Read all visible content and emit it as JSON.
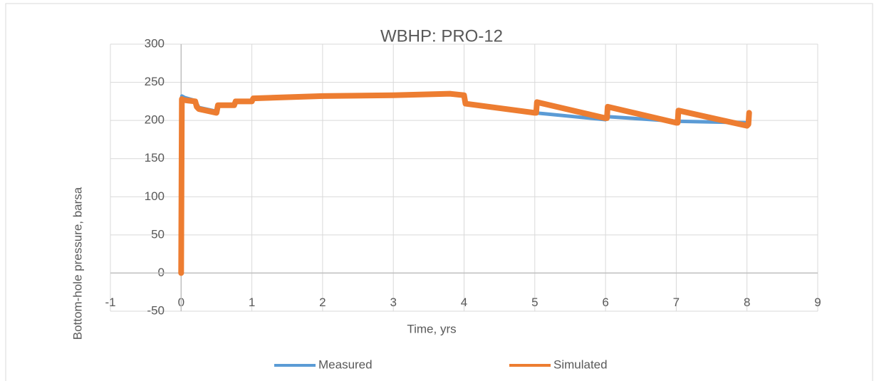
{
  "chart_data": {
    "type": "line",
    "title": "WBHP: PRO-12",
    "x_label": "Time, yrs",
    "y_label": "Bottom-hole pressure, barsa",
    "xlim": [
      -1,
      9
    ],
    "xticks": [
      -1,
      0,
      1,
      2,
      3,
      4,
      5,
      6,
      7,
      8,
      9
    ],
    "ylim": [
      -50,
      300
    ],
    "yticks": [
      -50,
      0,
      50,
      100,
      150,
      200,
      250,
      300
    ],
    "grid": true,
    "legend": "bottom",
    "series": [
      {
        "name": "Measured",
        "color": "#5b9bd5",
        "x": [
          0,
          0.01,
          0.05,
          0.2,
          0.25,
          0.5,
          0.52,
          0.75,
          0.77,
          1,
          1.02,
          2,
          3,
          3.8,
          4,
          4.02,
          5,
          6,
          6.02,
          7,
          8
        ],
        "values": [
          0,
          232,
          230,
          226,
          217,
          212,
          220,
          220,
          225,
          225,
          229,
          232,
          233,
          235,
          233,
          222,
          210,
          201,
          205,
          199,
          197
        ]
      },
      {
        "name": "Simulated",
        "color": "#ed7d31",
        "x": [
          0,
          0.01,
          0.02,
          0.1,
          0.2,
          0.22,
          0.25,
          0.5,
          0.52,
          0.55,
          0.75,
          0.77,
          1,
          1.02,
          2,
          3,
          3.8,
          4,
          4.02,
          5,
          5.02,
          5.03,
          6,
          6.02,
          6.03,
          7,
          7.02,
          7.03,
          8,
          8.02,
          8.03
        ],
        "values": [
          0,
          228,
          227,
          226,
          225,
          218,
          215,
          210,
          220,
          220,
          220,
          225,
          225,
          229,
          232,
          233,
          235,
          233,
          222,
          210,
          210,
          224,
          203,
          203,
          218,
          197,
          197,
          213,
          193,
          195,
          210
        ]
      }
    ]
  }
}
